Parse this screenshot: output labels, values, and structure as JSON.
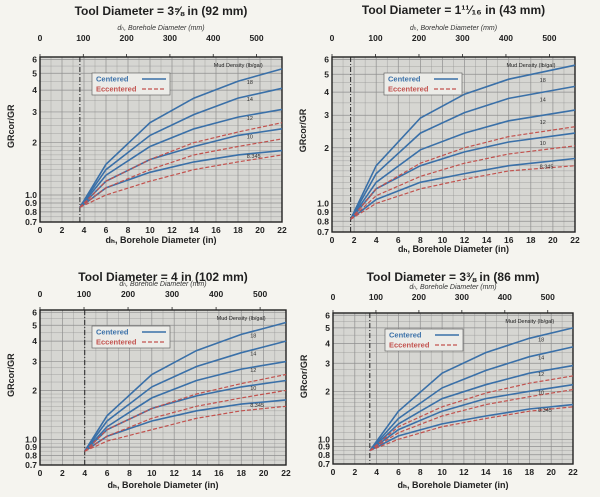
{
  "page": {
    "background": "#f5f4ef"
  },
  "colors": {
    "plot_bg": "#d6d6d2",
    "grid": "#8f8f8f",
    "centered": "#3a70a8",
    "eccentered": "#c2524e",
    "axis": "#222222"
  },
  "legend": {
    "centered": "Centered",
    "eccentered": "Eccentered"
  },
  "chart_data": [
    {
      "type": "line",
      "title": "Tool Diameter = 3⅝ in (92 mm)",
      "top_axis_label": "dₕ, Borehole Diameter (mm)",
      "xlabel": "dₕ, Borehole Diameter (in)",
      "ylabel": "GRcor/GR",
      "tool_diameter_in": 3.625,
      "x_ticks": [
        0,
        2,
        4,
        6,
        8,
        10,
        12,
        14,
        16,
        18,
        20,
        22
      ],
      "top_ticks": [
        0,
        100,
        200,
        300,
        400,
        500
      ],
      "y_ticks": [
        0.7,
        0.8,
        0.9,
        1.0,
        2,
        3,
        4,
        5,
        6
      ],
      "y_tick_labels": [
        "0.7",
        "0.8",
        "0.9",
        "1.0",
        "2",
        "3",
        "4",
        "5",
        "6"
      ],
      "xlim": [
        0,
        22
      ],
      "ylim": [
        0.7,
        6.2
      ],
      "y_scale": "log",
      "mud_density_label": "Mud Density (lb/gal)",
      "curve_labels": [
        "18",
        "14",
        "12",
        "10",
        "8.345"
      ],
      "centered": [
        {
          "x": [
            3.625,
            6,
            10,
            14,
            18,
            22
          ],
          "y": [
            0.85,
            1.5,
            2.6,
            3.6,
            4.5,
            5.3
          ]
        },
        {
          "x": [
            3.625,
            6,
            10,
            14,
            18,
            22
          ],
          "y": [
            0.85,
            1.4,
            2.2,
            2.9,
            3.6,
            4.1
          ]
        },
        {
          "x": [
            3.625,
            6,
            10,
            14,
            18,
            22
          ],
          "y": [
            0.85,
            1.3,
            1.9,
            2.4,
            2.8,
            3.1
          ]
        },
        {
          "x": [
            3.625,
            6,
            10,
            14,
            18,
            22
          ],
          "y": [
            0.85,
            1.2,
            1.6,
            1.9,
            2.2,
            2.4
          ]
        },
        {
          "x": [
            3.625,
            6,
            10,
            14,
            18,
            22
          ],
          "y": [
            0.85,
            1.1,
            1.35,
            1.55,
            1.7,
            1.8
          ]
        }
      ],
      "eccentered": [
        {
          "x": [
            3.625,
            6,
            10,
            14,
            18,
            22
          ],
          "y": [
            0.85,
            1.2,
            1.6,
            2.0,
            2.3,
            2.6
          ]
        },
        {
          "x": [
            3.625,
            6,
            10,
            14,
            18,
            22
          ],
          "y": [
            0.85,
            1.1,
            1.4,
            1.7,
            1.9,
            2.1
          ]
        },
        {
          "x": [
            3.625,
            6,
            10,
            14,
            18,
            22
          ],
          "y": [
            0.85,
            1.0,
            1.2,
            1.4,
            1.55,
            1.7
          ]
        }
      ]
    },
    {
      "type": "line",
      "title": "Tool Diameter = 1¹¹⁄₁₆ in (43 mm)",
      "top_axis_label": "dₕ, Borehole Diameter (mm)",
      "xlabel": "dₕ, Borehole Diameter (in)",
      "ylabel": "GRcor/GR",
      "tool_diameter_in": 1.6875,
      "x_ticks": [
        0,
        2,
        4,
        6,
        8,
        10,
        12,
        14,
        16,
        18,
        20,
        22
      ],
      "top_ticks": [
        0,
        100,
        200,
        300,
        400,
        500
      ],
      "y_ticks": [
        0.7,
        0.8,
        0.9,
        1.0,
        2,
        3,
        4,
        5,
        6
      ],
      "y_tick_labels": [
        "0.7",
        "0.8",
        "0.9",
        "1.0",
        "2",
        "3",
        "4",
        "5",
        "6"
      ],
      "xlim": [
        0,
        22
      ],
      "ylim": [
        0.7,
        6.2
      ],
      "y_scale": "log",
      "mud_density_label": "Mud Density (lb/gal)",
      "curve_labels": [
        "18",
        "14",
        "12",
        "10",
        "8.345"
      ],
      "centered": [
        {
          "x": [
            1.6875,
            4,
            8,
            12,
            16,
            22
          ],
          "y": [
            0.82,
            1.6,
            2.9,
            3.9,
            4.7,
            5.6
          ]
        },
        {
          "x": [
            1.6875,
            4,
            8,
            12,
            16,
            22
          ],
          "y": [
            0.82,
            1.45,
            2.4,
            3.1,
            3.7,
            4.3
          ]
        },
        {
          "x": [
            1.6875,
            4,
            8,
            12,
            16,
            22
          ],
          "y": [
            0.82,
            1.3,
            1.95,
            2.4,
            2.8,
            3.2
          ]
        },
        {
          "x": [
            1.6875,
            4,
            8,
            12,
            16,
            22
          ],
          "y": [
            0.82,
            1.2,
            1.6,
            1.9,
            2.15,
            2.4
          ]
        },
        {
          "x": [
            1.6875,
            4,
            8,
            12,
            16,
            22
          ],
          "y": [
            0.82,
            1.05,
            1.3,
            1.45,
            1.6,
            1.75
          ]
        }
      ],
      "eccentered": [
        {
          "x": [
            1.6875,
            4,
            8,
            12,
            16,
            22
          ],
          "y": [
            0.82,
            1.2,
            1.65,
            2.0,
            2.3,
            2.6
          ]
        },
        {
          "x": [
            1.6875,
            4,
            8,
            12,
            16,
            22
          ],
          "y": [
            0.82,
            1.1,
            1.4,
            1.65,
            1.85,
            2.05
          ]
        },
        {
          "x": [
            1.6875,
            4,
            8,
            12,
            16,
            22
          ],
          "y": [
            0.82,
            1.0,
            1.2,
            1.35,
            1.5,
            1.6
          ]
        }
      ]
    },
    {
      "type": "line",
      "title": "Tool Diameter = 4 in (102 mm)",
      "top_axis_label": "dₕ, Borehole Diameter (mm)",
      "xlabel": "dₕ, Borehole Diameter (in)",
      "ylabel": "GRcor/GR",
      "tool_diameter_in": 4,
      "x_ticks": [
        0,
        2,
        4,
        6,
        8,
        10,
        12,
        14,
        16,
        18,
        20,
        22
      ],
      "top_ticks": [
        0,
        100,
        200,
        300,
        400,
        500
      ],
      "y_ticks": [
        0.7,
        0.8,
        0.9,
        1.0,
        2,
        3,
        4,
        5,
        6
      ],
      "y_tick_labels": [
        "0.7",
        "0.8",
        "0.9",
        "1.0",
        "2",
        "3",
        "4",
        "5",
        "6"
      ],
      "xlim": [
        0,
        22
      ],
      "ylim": [
        0.7,
        6.2
      ],
      "y_scale": "log",
      "mud_density_label": "Mud Density (lb/gal)",
      "curve_labels": [
        "18",
        "14",
        "12",
        "10",
        "8.345"
      ],
      "centered": [
        {
          "x": [
            4,
            6,
            10,
            14,
            18,
            22
          ],
          "y": [
            0.85,
            1.4,
            2.5,
            3.5,
            4.4,
            5.2
          ]
        },
        {
          "x": [
            4,
            6,
            10,
            14,
            18,
            22
          ],
          "y": [
            0.85,
            1.3,
            2.1,
            2.8,
            3.4,
            4.0
          ]
        },
        {
          "x": [
            4,
            6,
            10,
            14,
            18,
            22
          ],
          "y": [
            0.85,
            1.2,
            1.8,
            2.3,
            2.7,
            3.0
          ]
        },
        {
          "x": [
            4,
            6,
            10,
            14,
            18,
            22
          ],
          "y": [
            0.85,
            1.15,
            1.55,
            1.85,
            2.1,
            2.3
          ]
        },
        {
          "x": [
            4,
            6,
            10,
            14,
            18,
            22
          ],
          "y": [
            0.85,
            1.05,
            1.3,
            1.5,
            1.65,
            1.75
          ]
        }
      ],
      "eccentered": [
        {
          "x": [
            4,
            6,
            10,
            14,
            18,
            22
          ],
          "y": [
            0.85,
            1.15,
            1.55,
            1.9,
            2.2,
            2.5
          ]
        },
        {
          "x": [
            4,
            6,
            10,
            14,
            18,
            22
          ],
          "y": [
            0.85,
            1.05,
            1.35,
            1.6,
            1.8,
            2.0
          ]
        },
        {
          "x": [
            4,
            6,
            10,
            14,
            18,
            22
          ],
          "y": [
            0.85,
            0.98,
            1.15,
            1.35,
            1.5,
            1.6
          ]
        }
      ]
    },
    {
      "type": "line",
      "title": "Tool Diameter = 3⅜ in (86 mm)",
      "top_axis_label": "dₕ, Borehole Diameter (mm)",
      "xlabel": "dₕ, Borehole Diameter (in)",
      "ylabel": "GRcor/GR",
      "tool_diameter_in": 3.375,
      "x_ticks": [
        0,
        2,
        4,
        6,
        8,
        10,
        12,
        14,
        16,
        18,
        20,
        22
      ],
      "top_ticks": [
        0,
        100,
        200,
        300,
        400,
        500
      ],
      "y_ticks": [
        0.7,
        0.8,
        0.9,
        1.0,
        2,
        3,
        4,
        5,
        6
      ],
      "y_tick_labels": [
        "0.7",
        "0.8",
        "0.9",
        "1.0",
        "2",
        "3",
        "4",
        "5",
        "6"
      ],
      "xlim": [
        0,
        22
      ],
      "ylim": [
        0.7,
        6.2
      ],
      "y_scale": "log",
      "mud_density_label": "Mud Density (lb/gal)",
      "curve_labels": [
        "18",
        "14",
        "12",
        "10",
        "8.345"
      ],
      "centered": [
        {
          "x": [
            3.375,
            6,
            10,
            14,
            18,
            22
          ],
          "y": [
            0.85,
            1.5,
            2.6,
            3.5,
            4.3,
            5.0
          ]
        },
        {
          "x": [
            3.375,
            6,
            10,
            14,
            18,
            22
          ],
          "y": [
            0.85,
            1.35,
            2.1,
            2.7,
            3.3,
            3.8
          ]
        },
        {
          "x": [
            3.375,
            6,
            10,
            14,
            18,
            22
          ],
          "y": [
            0.85,
            1.25,
            1.8,
            2.2,
            2.6,
            2.9
          ]
        },
        {
          "x": [
            3.375,
            6,
            10,
            14,
            18,
            22
          ],
          "y": [
            0.85,
            1.15,
            1.5,
            1.8,
            2.0,
            2.2
          ]
        },
        {
          "x": [
            3.375,
            6,
            10,
            14,
            18,
            22
          ],
          "y": [
            0.85,
            1.05,
            1.25,
            1.4,
            1.55,
            1.65
          ]
        }
      ],
      "eccentered": [
        {
          "x": [
            3.375,
            6,
            10,
            14,
            18,
            22
          ],
          "y": [
            0.85,
            1.2,
            1.6,
            1.95,
            2.25,
            2.5
          ]
        },
        {
          "x": [
            3.375,
            6,
            10,
            14,
            18,
            22
          ],
          "y": [
            0.85,
            1.1,
            1.4,
            1.65,
            1.85,
            2.05
          ]
        },
        {
          "x": [
            3.375,
            6,
            10,
            14,
            18,
            22
          ],
          "y": [
            0.85,
            1.0,
            1.2,
            1.35,
            1.5,
            1.6
          ]
        }
      ]
    }
  ]
}
